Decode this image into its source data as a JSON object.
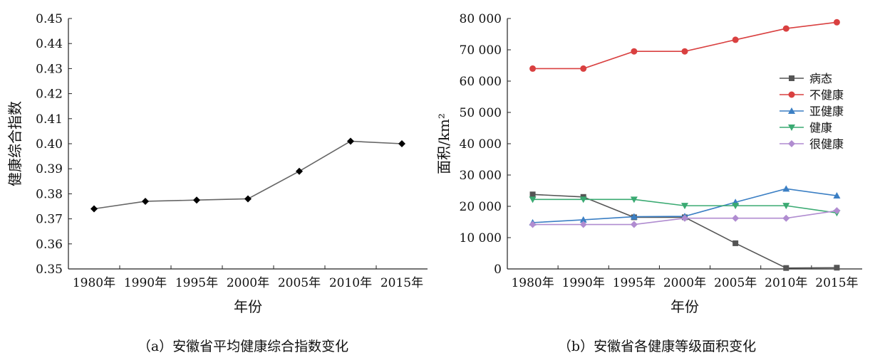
{
  "chart_data": [
    {
      "type": "line",
      "caption": "（a）安徽省平均健康综合指数变化",
      "xlabel": "年份",
      "ylabel": "健康综合指数",
      "categories": [
        "1980年",
        "1990年",
        "1995年",
        "2000年",
        "2005年",
        "2010年",
        "2015年"
      ],
      "values": [
        0.374,
        0.377,
        0.3775,
        0.378,
        0.389,
        0.401,
        0.4
      ],
      "ylim": [
        0.35,
        0.45
      ],
      "yticks": [
        "0.35",
        "0.36",
        "0.37",
        "0.38",
        "0.39",
        "0.40",
        "0.41",
        "0.42",
        "0.43",
        "0.44",
        "0.45"
      ],
      "line_color": "#666666",
      "marker": "diamond",
      "marker_color": "#000000"
    },
    {
      "type": "line",
      "caption": "（b）安徽省各健康等级面积变化",
      "xlabel": "年份",
      "ylabel": "面积/km²",
      "categories": [
        "1980年",
        "1990年",
        "1995年",
        "2000年",
        "2005年",
        "2010年",
        "2015年"
      ],
      "ylim": [
        0,
        80000
      ],
      "yticks": [
        "0",
        "10 000",
        "20 000",
        "30 000",
        "40 000",
        "50 000",
        "60 000",
        "70 000",
        "80 000"
      ],
      "legend_position": "upper-right",
      "series": [
        {
          "name": "病态",
          "values": [
            23800,
            23000,
            16500,
            16500,
            8200,
            300,
            400
          ],
          "color": "#555555",
          "marker": "square"
        },
        {
          "name": "不健康",
          "values": [
            64000,
            64000,
            69500,
            69500,
            73200,
            76800,
            78800
          ],
          "color": "#d94040",
          "marker": "circle"
        },
        {
          "name": "亚健康",
          "values": [
            14800,
            15700,
            16700,
            16800,
            21300,
            25600,
            23400
          ],
          "color": "#3b7fc4",
          "marker": "triangle-up"
        },
        {
          "name": "健康",
          "values": [
            22200,
            22200,
            22200,
            20200,
            20200,
            20200,
            17900
          ],
          "color": "#3aaa72",
          "marker": "triangle-down"
        },
        {
          "name": "很健康",
          "values": [
            14200,
            14200,
            14200,
            16200,
            16200,
            16200,
            18600
          ],
          "color": "#b08cd0",
          "marker": "diamond"
        }
      ]
    }
  ]
}
